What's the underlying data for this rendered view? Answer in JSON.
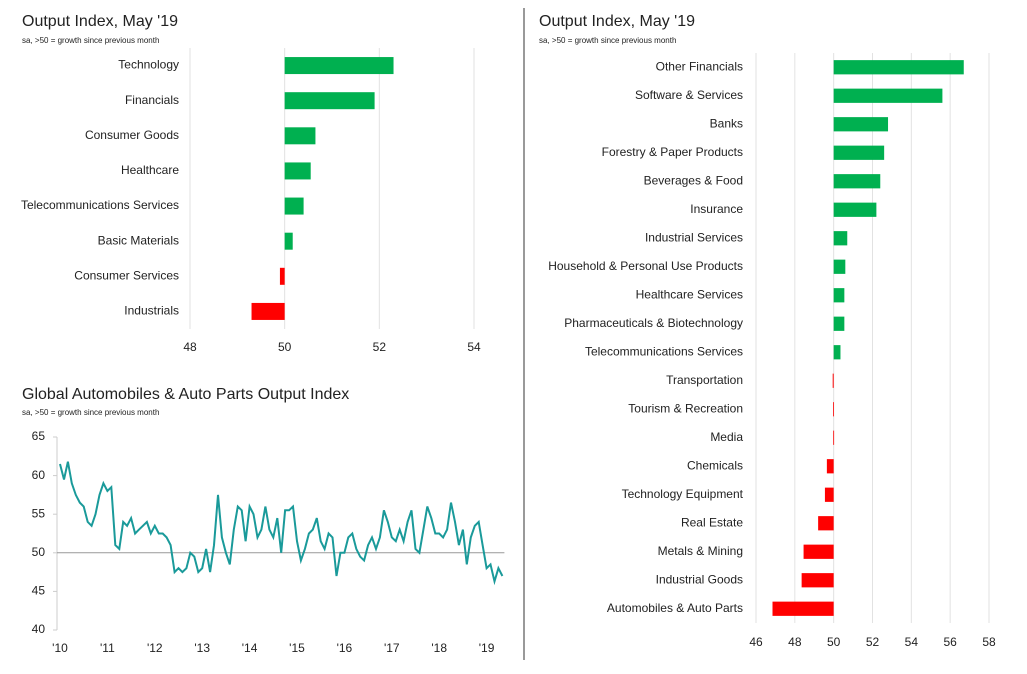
{
  "chart_data": [
    {
      "type": "bar",
      "horizontal": true,
      "title": "Output Index, May '19",
      "subtitle": "sa, >50 = growth since previous month",
      "categories": [
        "Technology",
        "Financials",
        "Consumer Goods",
        "Healthcare",
        "Telecommunications Services",
        "Basic Materials",
        "Consumer Services",
        "Industrials"
      ],
      "values": [
        52.3,
        51.9,
        50.65,
        50.55,
        50.4,
        50.17,
        49.9,
        49.3
      ],
      "base": 50,
      "color_above": "#00b050",
      "color_below": "#ff0000",
      "xlim": [
        48,
        54
      ],
      "xticks": [
        48,
        50,
        52,
        54
      ],
      "grid": true
    },
    {
      "type": "bar",
      "horizontal": true,
      "title": "Output Index, May '19",
      "subtitle": "sa, >50 = growth since previous month",
      "categories": [
        "Other Financials",
        "Software & Services",
        "Banks",
        "Forestry & Paper Products",
        "Beverages & Food",
        "Insurance",
        "Industrial Services",
        "Household & Personal Use Products",
        "Healthcare Services",
        "Pharmaceuticals & Biotechnology",
        "Telecommunications Services",
        "Transportation",
        "Tourism & Recreation",
        "Media",
        "Chemicals",
        "Technology Equipment",
        "Real Estate",
        "Metals & Mining",
        "Industrial Goods",
        "Automobiles & Auto Parts"
      ],
      "values": [
        56.7,
        55.6,
        52.8,
        52.6,
        52.4,
        52.2,
        50.7,
        50.6,
        50.55,
        50.55,
        50.35,
        49.95,
        49.97,
        49.98,
        49.65,
        49.55,
        49.2,
        48.45,
        48.35,
        46.85
      ],
      "base": 50,
      "color_above": "#00b050",
      "color_below": "#ff0000",
      "xlim": [
        46,
        58
      ],
      "xticks": [
        46,
        48,
        50,
        52,
        54,
        56,
        58
      ],
      "grid": true
    },
    {
      "type": "line",
      "title": "Global Automobiles & Auto Parts Output Index",
      "subtitle": "sa, >50 = growth since previous month",
      "categories": [
        "'10",
        null,
        null,
        null,
        null,
        null,
        null,
        null,
        null,
        null,
        null,
        null,
        "'11",
        null,
        null,
        null,
        null,
        null,
        null,
        null,
        null,
        null,
        null,
        null,
        "'12",
        null,
        null,
        null,
        null,
        null,
        null,
        null,
        null,
        null,
        null,
        null,
        "'13",
        null,
        null,
        null,
        null,
        null,
        null,
        null,
        null,
        null,
        null,
        null,
        "'14",
        null,
        null,
        null,
        null,
        null,
        null,
        null,
        null,
        null,
        null,
        null,
        "'15",
        null,
        null,
        null,
        null,
        null,
        null,
        null,
        null,
        null,
        null,
        null,
        "'16",
        null,
        null,
        null,
        null,
        null,
        null,
        null,
        null,
        null,
        null,
        null,
        "'17",
        null,
        null,
        null,
        null,
        null,
        null,
        null,
        null,
        null,
        null,
        null,
        "'18",
        null,
        null,
        null,
        null,
        null,
        null,
        null,
        null,
        null,
        null,
        null,
        "'19",
        null,
        null,
        null,
        null
      ],
      "series": [
        {
          "name": "Global Automobiles & Auto Parts Output Index",
          "color": "#1a9a9a",
          "values": [
            61.5,
            59.5,
            61.8,
            59,
            57.5,
            56.5,
            56,
            54,
            53.5,
            55,
            57.5,
            59,
            58,
            58.5,
            51,
            50.5,
            54,
            53.5,
            54.5,
            52.5,
            53,
            53.5,
            54,
            52.5,
            53.5,
            52.5,
            52.5,
            52,
            51,
            47.5,
            48,
            47.5,
            48,
            50,
            49.5,
            47.5,
            48,
            50.5,
            47.5,
            51,
            57.5,
            52,
            50,
            48.5,
            53,
            56,
            55.5,
            51.5,
            56,
            55,
            52,
            53,
            56,
            53,
            52,
            54.5,
            50,
            55.5,
            55.5,
            56,
            51.5,
            49,
            50.5,
            52.5,
            53,
            54.5,
            51.5,
            50.5,
            52.5,
            52,
            47,
            50,
            50,
            52,
            52.5,
            50.5,
            49.5,
            49,
            51,
            52,
            50.5,
            52,
            55.5,
            54,
            52,
            51.5,
            53,
            51.5,
            54,
            55.5,
            50.5,
            50,
            53,
            56,
            54.5,
            52.5,
            52.5,
            52,
            53,
            56.5,
            54,
            51,
            53,
            48.5,
            52,
            53.5,
            54,
            51,
            48,
            48.5,
            46.3,
            48,
            47
          ]
        }
      ],
      "reference_line": 50,
      "ylim": [
        40,
        65
      ],
      "yticks": [
        40,
        45,
        50,
        55,
        60,
        65
      ]
    }
  ]
}
